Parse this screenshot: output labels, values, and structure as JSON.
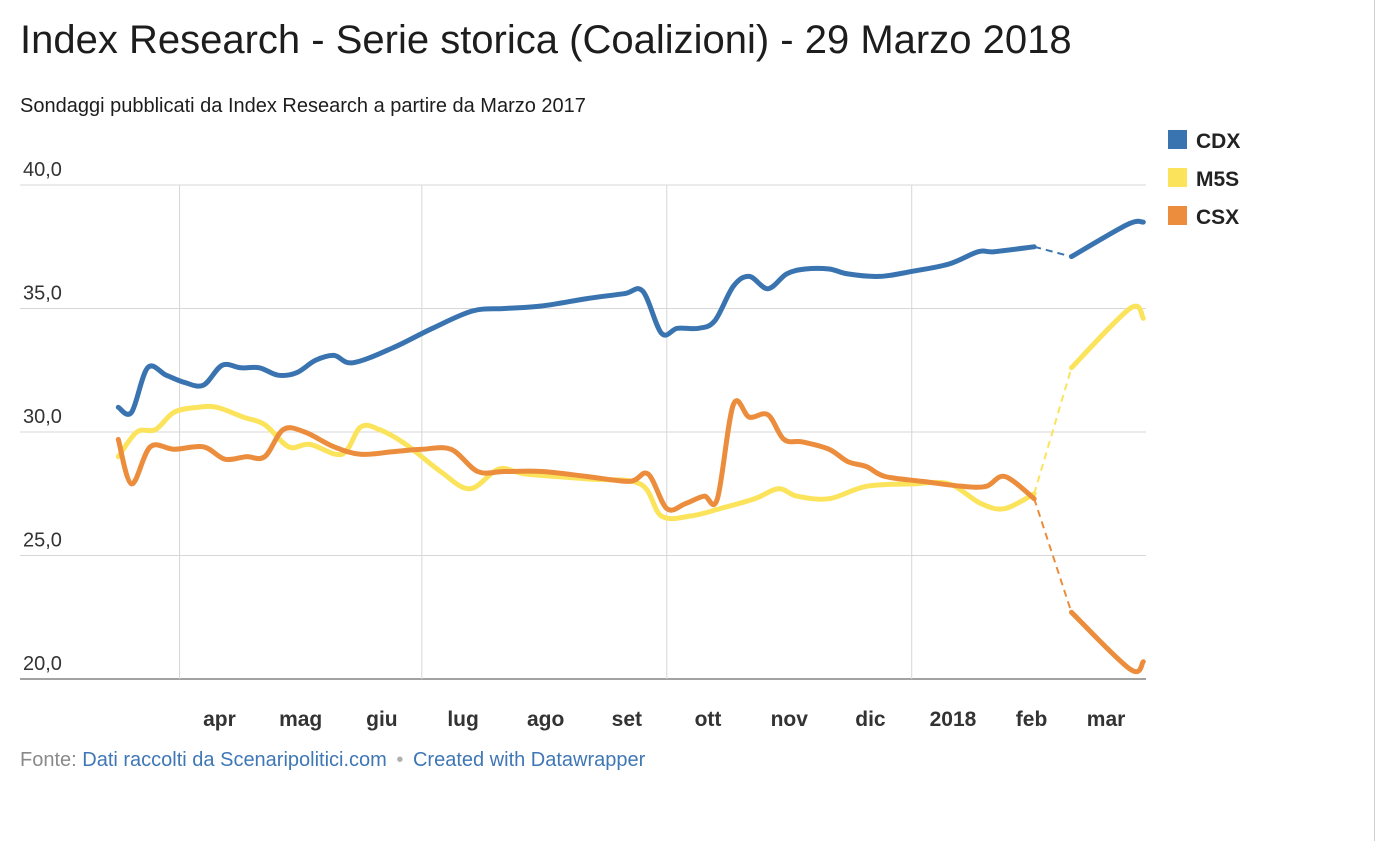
{
  "title": "Index Research - Serie storica (Coalizioni) - 29 Marzo 2018",
  "subtitle": "Sondaggi pubblicati da Index Research a partire da Marzo 2017",
  "footer": {
    "source_label": "Fonte:",
    "source_link": "Dati raccolti da Scenaripolitici.com",
    "separator": "•",
    "credit_link": "Created with Datawrapper"
  },
  "chart_data": {
    "type": "line",
    "y_ticks": [
      "40,0",
      "35,0",
      "30,0",
      "25,0",
      "20,0"
    ],
    "ylim": [
      20,
      40
    ],
    "x_ticks": [
      {
        "label": "apr",
        "date": "2017-04-01"
      },
      {
        "label": "mag",
        "date": "2017-05-01"
      },
      {
        "label": "giu",
        "date": "2017-06-01"
      },
      {
        "label": "lug",
        "date": "2017-07-01"
      },
      {
        "label": "ago",
        "date": "2017-08-01"
      },
      {
        "label": "set",
        "date": "2017-09-01"
      },
      {
        "label": "ott",
        "date": "2017-10-01"
      },
      {
        "label": "nov",
        "date": "2017-11-01"
      },
      {
        "label": "dic",
        "date": "2017-12-01"
      },
      {
        "label": "2018",
        "date": "2018-01-01"
      },
      {
        "label": "feb",
        "date": "2018-02-01"
      },
      {
        "label": "mar",
        "date": "2018-03-01"
      }
    ],
    "gridlines": [
      "2017-04-01",
      "2017-07-01",
      "2017-10-01",
      "2018-01-01"
    ],
    "xlim": [
      "2017-03-04",
      "2018-03-30"
    ],
    "dashed_from": "2018-02-16",
    "legend_position": "top-right",
    "series": [
      {
        "name": "CDX",
        "color": "#3a74b0",
        "points": [
          [
            "2017-03-09",
            31.0
          ],
          [
            "2017-03-14",
            30.8
          ],
          [
            "2017-03-20",
            32.6
          ],
          [
            "2017-03-27",
            32.3
          ],
          [
            "2017-04-03",
            32.0
          ],
          [
            "2017-04-10",
            31.9
          ],
          [
            "2017-04-17",
            32.7
          ],
          [
            "2017-04-24",
            32.6
          ],
          [
            "2017-05-01",
            32.6
          ],
          [
            "2017-05-08",
            32.3
          ],
          [
            "2017-05-15",
            32.4
          ],
          [
            "2017-05-22",
            32.9
          ],
          [
            "2017-05-29",
            33.1
          ],
          [
            "2017-06-05",
            32.8
          ],
          [
            "2017-06-20",
            33.4
          ],
          [
            "2017-07-05",
            34.2
          ],
          [
            "2017-07-20",
            34.9
          ],
          [
            "2017-08-01",
            35.0
          ],
          [
            "2017-08-15",
            35.1
          ],
          [
            "2017-09-01",
            35.4
          ],
          [
            "2017-09-15",
            35.6
          ],
          [
            "2017-09-22",
            35.7
          ],
          [
            "2017-09-29",
            34.0
          ],
          [
            "2017-10-05",
            34.2
          ],
          [
            "2017-10-13",
            34.2
          ],
          [
            "2017-10-19",
            34.5
          ],
          [
            "2017-10-26",
            35.9
          ],
          [
            "2017-11-01",
            36.3
          ],
          [
            "2017-11-08",
            35.8
          ],
          [
            "2017-11-15",
            36.4
          ],
          [
            "2017-11-22",
            36.6
          ],
          [
            "2017-12-01",
            36.6
          ],
          [
            "2017-12-08",
            36.4
          ],
          [
            "2017-12-20",
            36.3
          ],
          [
            "2018-01-01",
            36.5
          ],
          [
            "2018-01-15",
            36.8
          ],
          [
            "2018-01-26",
            37.3
          ],
          [
            "2018-02-01",
            37.3
          ],
          [
            "2018-02-16",
            37.5
          ],
          [
            "2018-03-02",
            37.1
          ],
          [
            "2018-03-23",
            38.4
          ],
          [
            "2018-03-29",
            38.5
          ]
        ]
      },
      {
        "name": "M5S",
        "color": "#fbe45c",
        "points": [
          [
            "2017-03-09",
            29.0
          ],
          [
            "2017-03-16",
            30.0
          ],
          [
            "2017-03-23",
            30.1
          ],
          [
            "2017-03-30",
            30.8
          ],
          [
            "2017-04-08",
            31.0
          ],
          [
            "2017-04-15",
            31.0
          ],
          [
            "2017-04-25",
            30.6
          ],
          [
            "2017-05-03",
            30.3
          ],
          [
            "2017-05-12",
            29.4
          ],
          [
            "2017-05-20",
            29.5
          ],
          [
            "2017-06-01",
            29.1
          ],
          [
            "2017-06-08",
            30.2
          ],
          [
            "2017-06-15",
            30.1
          ],
          [
            "2017-06-25",
            29.5
          ],
          [
            "2017-07-08",
            28.4
          ],
          [
            "2017-07-19",
            27.7
          ],
          [
            "2017-07-30",
            28.5
          ],
          [
            "2017-08-09",
            28.3
          ],
          [
            "2017-09-01",
            28.1
          ],
          [
            "2017-09-21",
            27.9
          ],
          [
            "2017-09-29",
            26.6
          ],
          [
            "2017-10-10",
            26.6
          ],
          [
            "2017-10-21",
            26.9
          ],
          [
            "2017-11-03",
            27.3
          ],
          [
            "2017-11-12",
            27.7
          ],
          [
            "2017-11-19",
            27.4
          ],
          [
            "2017-12-01",
            27.3
          ],
          [
            "2017-12-15",
            27.8
          ],
          [
            "2018-01-01",
            27.9
          ],
          [
            "2018-01-15",
            27.9
          ],
          [
            "2018-01-27",
            27.1
          ],
          [
            "2018-02-05",
            26.9
          ],
          [
            "2018-02-16",
            27.5
          ],
          [
            "2018-03-02",
            32.6
          ],
          [
            "2018-03-24",
            35.0
          ],
          [
            "2018-03-29",
            34.6
          ]
        ]
      },
      {
        "name": "CSX",
        "color": "#eb8d3c",
        "points": [
          [
            "2017-03-09",
            29.7
          ],
          [
            "2017-03-14",
            27.9
          ],
          [
            "2017-03-21",
            29.4
          ],
          [
            "2017-03-30",
            29.3
          ],
          [
            "2017-04-10",
            29.4
          ],
          [
            "2017-04-18",
            28.9
          ],
          [
            "2017-04-26",
            29.0
          ],
          [
            "2017-05-03",
            29.0
          ],
          [
            "2017-05-10",
            30.1
          ],
          [
            "2017-05-18",
            30.0
          ],
          [
            "2017-05-29",
            29.4
          ],
          [
            "2017-06-08",
            29.1
          ],
          [
            "2017-06-20",
            29.2
          ],
          [
            "2017-07-01",
            29.3
          ],
          [
            "2017-07-12",
            29.3
          ],
          [
            "2017-07-22",
            28.4
          ],
          [
            "2017-08-01",
            28.4
          ],
          [
            "2017-08-15",
            28.4
          ],
          [
            "2017-09-01",
            28.2
          ],
          [
            "2017-09-17",
            28.0
          ],
          [
            "2017-09-24",
            28.3
          ],
          [
            "2017-10-01",
            26.9
          ],
          [
            "2017-10-08",
            27.1
          ],
          [
            "2017-10-15",
            27.4
          ],
          [
            "2017-10-20",
            27.3
          ],
          [
            "2017-10-26",
            31.1
          ],
          [
            "2017-11-01",
            30.6
          ],
          [
            "2017-11-08",
            30.7
          ],
          [
            "2017-11-14",
            29.7
          ],
          [
            "2017-11-21",
            29.6
          ],
          [
            "2017-12-01",
            29.3
          ],
          [
            "2017-12-08",
            28.8
          ],
          [
            "2017-12-15",
            28.6
          ],
          [
            "2017-12-22",
            28.2
          ],
          [
            "2018-01-05",
            28.0
          ],
          [
            "2018-01-20",
            27.8
          ],
          [
            "2018-01-29",
            27.8
          ],
          [
            "2018-02-05",
            28.2
          ],
          [
            "2018-02-16",
            27.3
          ],
          [
            "2018-03-02",
            22.7
          ],
          [
            "2018-03-24",
            20.4
          ],
          [
            "2018-03-29",
            20.7
          ]
        ]
      }
    ]
  }
}
